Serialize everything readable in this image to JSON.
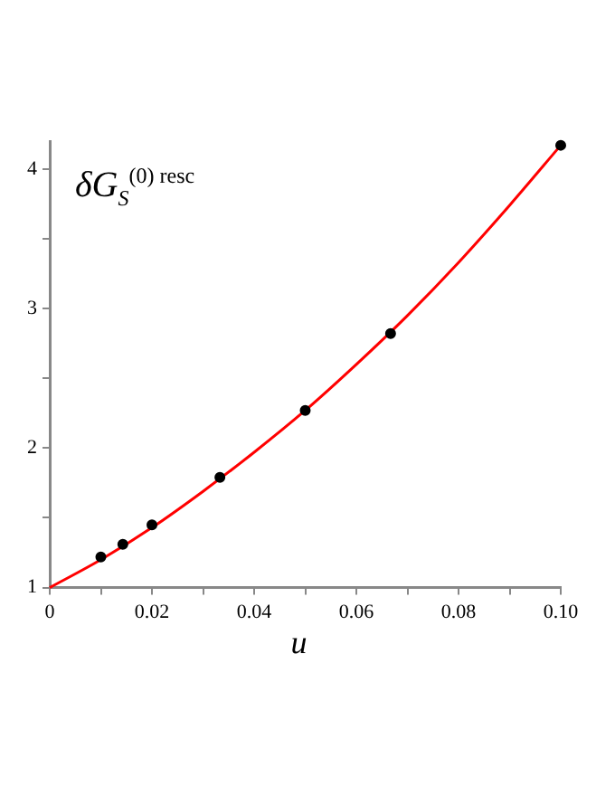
{
  "chart_data": {
    "type": "line",
    "xlabel": "u",
    "ylabel": "δG$_{S}$$^{(0) resc}$",
    "xlim": [
      0,
      0.1
    ],
    "ylim": [
      1,
      4.2
    ],
    "xticks": [
      0,
      {
        "value": 0.01,
        "label": null
      },
      0.02,
      {
        "value": 0.03,
        "label": null
      },
      0.04,
      {
        "value": 0.05,
        "label": null
      },
      0.06,
      {
        "value": 0.07,
        "label": null
      },
      0.08,
      {
        "value": 0.09,
        "label": null
      },
      {
        "value": 0.1,
        "label": "0.10"
      }
    ],
    "yticks": [
      1,
      {
        "value": 1.5,
        "label": null
      },
      2,
      {
        "value": 2.5,
        "label": null
      },
      3,
      {
        "value": 3.5,
        "label": null
      },
      4
    ],
    "grid": false,
    "legend": false,
    "series": [
      {
        "color": "#ff0000",
        "marker": "none",
        "line_style": "solid",
        "x": [
          0,
          0.01,
          0.02,
          0.03,
          0.04,
          0.05,
          0.06,
          0.07,
          0.08,
          0.09,
          0.1
        ],
        "values": [
          1,
          1.2,
          1.43,
          1.69,
          1.97,
          2.27,
          2.6,
          2.95,
          3.33,
          3.74,
          4.17
        ]
      },
      {
        "type": "scatter",
        "color": "#000000",
        "marker": "circle",
        "x": [
          0.01,
          0.0143,
          0.02,
          0.0333,
          0.05,
          0.0667,
          0.1
        ],
        "values": [
          1.22,
          1.31,
          1.45,
          1.79,
          2.27,
          2.82,
          4.17
        ]
      }
    ]
  }
}
